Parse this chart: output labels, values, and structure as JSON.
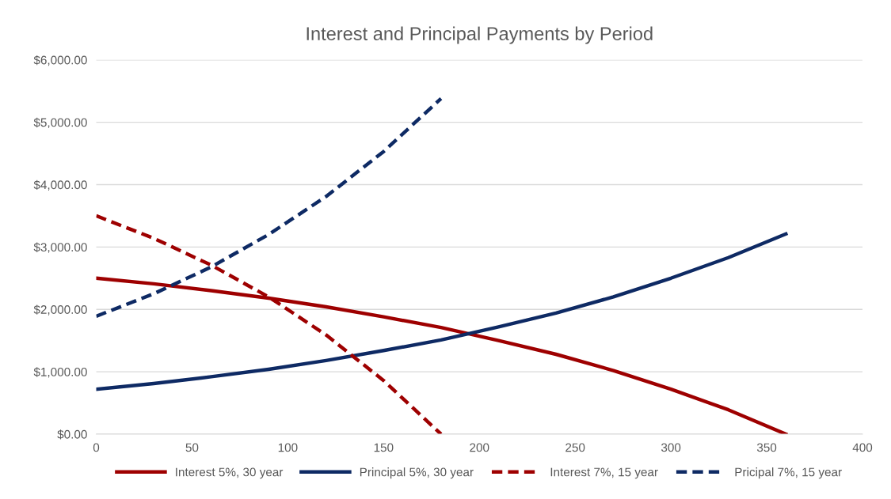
{
  "chart_data": {
    "type": "line",
    "title": "Interest and Principal Payments by Period",
    "xlim": [
      0,
      400
    ],
    "xticks": [
      0,
      50,
      100,
      150,
      200,
      250,
      300,
      350,
      400
    ],
    "ylim": [
      0,
      6000
    ],
    "yticks": [
      {
        "value": 0,
        "label": "$0.00"
      },
      {
        "value": 1000,
        "label": "$1,000.00"
      },
      {
        "value": 2000,
        "label": "$2,000.00"
      },
      {
        "value": 3000,
        "label": "$3,000.00"
      },
      {
        "value": 4000,
        "label": "$4,000.00"
      },
      {
        "value": 5000,
        "label": "$5,000.00"
      },
      {
        "value": 6000,
        "label": "$6,000.00"
      }
    ],
    "grid": "y",
    "legend": "bottom",
    "marker": "none",
    "series": [
      {
        "name": "Interest 5%, 30 year",
        "color": "#9e0000",
        "line_style": "solid",
        "x": [
          0,
          30,
          60,
          90,
          120,
          150,
          180,
          210,
          240,
          270,
          300,
          330,
          360
        ],
        "values": [
          2500,
          2410,
          2300,
          2180,
          2040,
          1880,
          1710,
          1500,
          1280,
          1020,
          720,
          390,
          0
        ]
      },
      {
        "name": "Principal 5%, 30 year",
        "color": "#0e2a64",
        "line_style": "solid",
        "x": [
          0,
          30,
          60,
          90,
          120,
          150,
          180,
          210,
          240,
          270,
          300,
          330,
          360
        ],
        "values": [
          720,
          810,
          920,
          1040,
          1180,
          1340,
          1510,
          1720,
          1940,
          2200,
          2500,
          2830,
          3210
        ]
      },
      {
        "name": "Interest 7%, 15 year",
        "color": "#9e0000",
        "line_style": "dashed",
        "x": [
          0,
          30,
          60,
          90,
          120,
          150,
          180
        ],
        "values": [
          3500,
          3140,
          2710,
          2200,
          1590,
          860,
          0
        ]
      },
      {
        "name": "Pricipal 7%, 15 year",
        "color": "#0e2a64",
        "line_style": "dashed",
        "x": [
          0,
          30,
          60,
          90,
          120,
          150,
          180
        ],
        "values": [
          1890,
          2250,
          2680,
          3200,
          3810,
          4530,
          5380
        ]
      }
    ]
  }
}
